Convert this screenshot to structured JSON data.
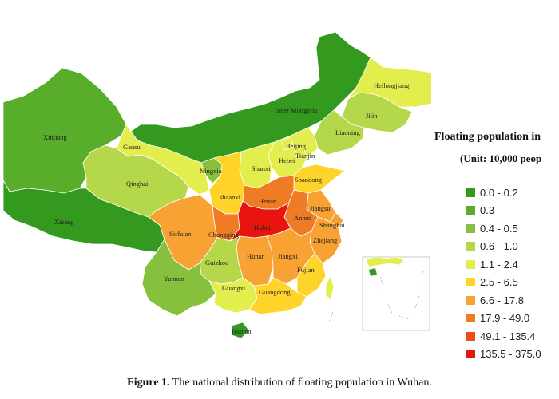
{
  "legend": {
    "title": "Floating population in",
    "unit": "(Unit: 10,000 peop",
    "classes": [
      {
        "range": "0.0 - 0.2",
        "color": "#339a1f"
      },
      {
        "range": "0.3",
        "color": "#58ad2a"
      },
      {
        "range": "0.4 - 0.5",
        "color": "#86c03c"
      },
      {
        "range": "0.6 - 1.0",
        "color": "#b5d84a"
      },
      {
        "range": "1.1 - 2.4",
        "color": "#e3ee4e"
      },
      {
        "range": "2.5 - 6.5",
        "color": "#ffd42a"
      },
      {
        "range": "6.6 - 17.8",
        "color": "#f8a233"
      },
      {
        "range": "17.9 - 49.0",
        "color": "#ef7b24"
      },
      {
        "range": "49.1 - 135.4",
        "color": "#ee4b1c"
      },
      {
        "range": "135.5 - 375.0",
        "color": "#e8150f"
      }
    ]
  },
  "provinces": [
    {
      "name": "Xinjiang",
      "class": 1
    },
    {
      "name": "Xizang",
      "class": 0
    },
    {
      "name": "Inner Mongolia",
      "class": 0
    },
    {
      "name": "Heilongjiang",
      "class": 4
    },
    {
      "name": "Jilin",
      "class": 3
    },
    {
      "name": "Liaoning",
      "class": 3
    },
    {
      "name": "Gansu",
      "class": 4
    },
    {
      "name": "Qinghai",
      "class": 3
    },
    {
      "name": "Ningxia",
      "class": 2
    },
    {
      "name": "Beijing",
      "class": 4
    },
    {
      "name": "Tianjin",
      "class": 4
    },
    {
      "name": "Hebei",
      "class": 4
    },
    {
      "name": "Shanxi",
      "class": 4
    },
    {
      "name": "Shandong",
      "class": 5
    },
    {
      "name": "shaanxi",
      "class": 5
    },
    {
      "name": "Henan",
      "class": 7
    },
    {
      "name": "Jiangsu",
      "class": 6
    },
    {
      "name": "Anhui",
      "class": 7
    },
    {
      "name": "Shanghai",
      "class": 6
    },
    {
      "name": "Sichuan",
      "class": 6
    },
    {
      "name": "Chongqing",
      "class": 7
    },
    {
      "name": "Hubei",
      "class": 9
    },
    {
      "name": "Zhejiang",
      "class": 6
    },
    {
      "name": "Hunan",
      "class": 6
    },
    {
      "name": "Jiangxi",
      "class": 6
    },
    {
      "name": "Guizhou",
      "class": 3
    },
    {
      "name": "Yunnan",
      "class": 2
    },
    {
      "name": "Fujian",
      "class": 5
    },
    {
      "name": "Guangxi",
      "class": 4
    },
    {
      "name": "Guangdong",
      "class": 5
    },
    {
      "name": "Hainan",
      "class": 0
    },
    {
      "name": "",
      "class": 4
    }
  ],
  "caption": {
    "prefix": "Figure 1.",
    "text": " The national distribution of floating population in Wuhan."
  }
}
